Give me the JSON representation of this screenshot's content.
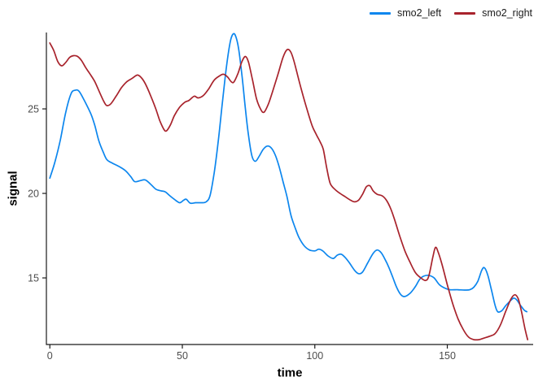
{
  "chart_data": {
    "type": "line",
    "title": "",
    "xlabel": "time",
    "ylabel": "signal",
    "x_ticks": [
      0,
      50,
      100,
      150
    ],
    "y_ticks": [
      15,
      20,
      25
    ],
    "xlim": [
      -1.3,
      182.4
    ],
    "ylim": [
      11.06,
      29.52
    ],
    "grid": false,
    "legend_position": "top-right",
    "axis_color": "#1a1a1a",
    "tick_label_color": "#4d4d4d",
    "series": [
      {
        "name": "smo2_left",
        "color": "#0c86ee",
        "points": [
          [
            0,
            20.9
          ],
          [
            2,
            21.9
          ],
          [
            4,
            23.2
          ],
          [
            6,
            24.8
          ],
          [
            8,
            25.9
          ],
          [
            9.5,
            26.1
          ],
          [
            11,
            26.05
          ],
          [
            13,
            25.5
          ],
          [
            15.5,
            24.7
          ],
          [
            17,
            24.0
          ],
          [
            18.5,
            23.1
          ],
          [
            20,
            22.5
          ],
          [
            21.5,
            22.0
          ],
          [
            23.5,
            21.8
          ],
          [
            26,
            21.6
          ],
          [
            28.5,
            21.35
          ],
          [
            30.5,
            21.0
          ],
          [
            32,
            20.7
          ],
          [
            34,
            20.75
          ],
          [
            36,
            20.8
          ],
          [
            38,
            20.55
          ],
          [
            40,
            20.25
          ],
          [
            42,
            20.15
          ],
          [
            43.5,
            20.1
          ],
          [
            45,
            19.9
          ],
          [
            47,
            19.65
          ],
          [
            49,
            19.45
          ],
          [
            50.5,
            19.6
          ],
          [
            51.5,
            19.65
          ],
          [
            53,
            19.42
          ],
          [
            55,
            19.45
          ],
          [
            57,
            19.45
          ],
          [
            59,
            19.5
          ],
          [
            60.5,
            19.9
          ],
          [
            62,
            21.2
          ],
          [
            63.5,
            23.0
          ],
          [
            65,
            25.2
          ],
          [
            66.5,
            27.3
          ],
          [
            68,
            28.9
          ],
          [
            69,
            29.4
          ],
          [
            70,
            29.35
          ],
          [
            71.2,
            28.6
          ],
          [
            72.5,
            27.0
          ],
          [
            73.8,
            25.0
          ],
          [
            75,
            23.4
          ],
          [
            76.3,
            22.2
          ],
          [
            77.6,
            21.9
          ],
          [
            79,
            22.2
          ],
          [
            80.5,
            22.6
          ],
          [
            82,
            22.8
          ],
          [
            83.5,
            22.7
          ],
          [
            85,
            22.3
          ],
          [
            86.5,
            21.6
          ],
          [
            88,
            20.7
          ],
          [
            89.5,
            19.8
          ],
          [
            91,
            18.7
          ],
          [
            92.5,
            18.0
          ],
          [
            94,
            17.4
          ],
          [
            96,
            16.9
          ],
          [
            98,
            16.65
          ],
          [
            100,
            16.6
          ],
          [
            101.5,
            16.7
          ],
          [
            103,
            16.6
          ],
          [
            105,
            16.3
          ],
          [
            107,
            16.15
          ],
          [
            108.5,
            16.35
          ],
          [
            110,
            16.4
          ],
          [
            111.5,
            16.2
          ],
          [
            113,
            15.9
          ],
          [
            115,
            15.45
          ],
          [
            116.5,
            15.25
          ],
          [
            118,
            15.35
          ],
          [
            120,
            15.9
          ],
          [
            122,
            16.45
          ],
          [
            123.5,
            16.65
          ],
          [
            125,
            16.5
          ],
          [
            126.5,
            16.1
          ],
          [
            128,
            15.6
          ],
          [
            129.5,
            15.0
          ],
          [
            131,
            14.4
          ],
          [
            132.5,
            14.0
          ],
          [
            134,
            13.9
          ],
          [
            136,
            14.1
          ],
          [
            138,
            14.5
          ],
          [
            139.5,
            14.9
          ],
          [
            141,
            15.1
          ],
          [
            143,
            15.15
          ],
          [
            145,
            15.0
          ],
          [
            147,
            14.6
          ],
          [
            149,
            14.4
          ],
          [
            151,
            14.3
          ],
          [
            154,
            14.3
          ],
          [
            156.5,
            14.28
          ],
          [
            158.5,
            14.3
          ],
          [
            160,
            14.45
          ],
          [
            161.5,
            14.8
          ],
          [
            163,
            15.45
          ],
          [
            164,
            15.6
          ],
          [
            165.2,
            15.2
          ],
          [
            166.5,
            14.4
          ],
          [
            168,
            13.4
          ],
          [
            169,
            13.0
          ],
          [
            170.5,
            13.05
          ],
          [
            172,
            13.35
          ],
          [
            173.5,
            13.6
          ],
          [
            175,
            13.8
          ],
          [
            176.2,
            13.7
          ],
          [
            177.5,
            13.4
          ],
          [
            179,
            13.1
          ],
          [
            180,
            13.0
          ]
        ]
      },
      {
        "name": "smo2_right",
        "color": "#a8232c",
        "points": [
          [
            0,
            28.9
          ],
          [
            1.5,
            28.45
          ],
          [
            3,
            27.8
          ],
          [
            4.5,
            27.55
          ],
          [
            6,
            27.75
          ],
          [
            7.5,
            28.05
          ],
          [
            9,
            28.15
          ],
          [
            10.5,
            28.1
          ],
          [
            12,
            27.85
          ],
          [
            13.5,
            27.45
          ],
          [
            15,
            27.1
          ],
          [
            17,
            26.6
          ],
          [
            19,
            25.9
          ],
          [
            20.5,
            25.4
          ],
          [
            21.5,
            25.2
          ],
          [
            23,
            25.3
          ],
          [
            25,
            25.75
          ],
          [
            27,
            26.25
          ],
          [
            29,
            26.6
          ],
          [
            31,
            26.8
          ],
          [
            33,
            27.0
          ],
          [
            34.5,
            26.85
          ],
          [
            36,
            26.5
          ],
          [
            38,
            25.8
          ],
          [
            40,
            25.0
          ],
          [
            41.5,
            24.3
          ],
          [
            43,
            23.8
          ],
          [
            44,
            23.7
          ],
          [
            45.5,
            24.05
          ],
          [
            47,
            24.6
          ],
          [
            49,
            25.1
          ],
          [
            51,
            25.4
          ],
          [
            52.5,
            25.5
          ],
          [
            54.5,
            25.75
          ],
          [
            56,
            25.65
          ],
          [
            58,
            25.8
          ],
          [
            60,
            26.2
          ],
          [
            62,
            26.7
          ],
          [
            64,
            26.95
          ],
          [
            65.5,
            27.05
          ],
          [
            67,
            26.9
          ],
          [
            68.5,
            26.6
          ],
          [
            69.5,
            26.6
          ],
          [
            71,
            27.1
          ],
          [
            72.5,
            27.8
          ],
          [
            73.8,
            28.1
          ],
          [
            75,
            27.75
          ],
          [
            76.5,
            26.7
          ],
          [
            78,
            25.6
          ],
          [
            79.5,
            25.0
          ],
          [
            80.8,
            24.8
          ],
          [
            82.5,
            25.3
          ],
          [
            84,
            26.0
          ],
          [
            86,
            27.0
          ],
          [
            88,
            28.05
          ],
          [
            89.5,
            28.5
          ],
          [
            90.8,
            28.4
          ],
          [
            92,
            27.9
          ],
          [
            93.5,
            27.0
          ],
          [
            95,
            26.1
          ],
          [
            97,
            25.0
          ],
          [
            99,
            24.0
          ],
          [
            100.5,
            23.5
          ],
          [
            102,
            23.05
          ],
          [
            103.2,
            22.6
          ],
          [
            104.5,
            21.5
          ],
          [
            105.8,
            20.6
          ],
          [
            107.5,
            20.25
          ],
          [
            109.5,
            20.0
          ],
          [
            111.5,
            19.8
          ],
          [
            113.5,
            19.6
          ],
          [
            115,
            19.5
          ],
          [
            116.5,
            19.6
          ],
          [
            118,
            19.95
          ],
          [
            119.5,
            20.4
          ],
          [
            120.8,
            20.45
          ],
          [
            122,
            20.15
          ],
          [
            123.5,
            19.95
          ],
          [
            125.5,
            19.85
          ],
          [
            127,
            19.6
          ],
          [
            128.5,
            19.15
          ],
          [
            130,
            18.5
          ],
          [
            132,
            17.5
          ],
          [
            134,
            16.6
          ],
          [
            136,
            15.9
          ],
          [
            138,
            15.3
          ],
          [
            140,
            15.0
          ],
          [
            141.8,
            14.85
          ],
          [
            143,
            15.1
          ],
          [
            144.5,
            16.2
          ],
          [
            145.5,
            16.8
          ],
          [
            146.5,
            16.55
          ],
          [
            148,
            15.8
          ],
          [
            150,
            14.6
          ],
          [
            152,
            13.5
          ],
          [
            154,
            12.6
          ],
          [
            156,
            11.95
          ],
          [
            158,
            11.5
          ],
          [
            160,
            11.35
          ],
          [
            162,
            11.35
          ],
          [
            164,
            11.45
          ],
          [
            166,
            11.55
          ],
          [
            168,
            11.7
          ],
          [
            170,
            12.2
          ],
          [
            172,
            13.0
          ],
          [
            174,
            13.75
          ],
          [
            175.5,
            14.0
          ],
          [
            176.8,
            13.75
          ],
          [
            178,
            13.0
          ],
          [
            179.3,
            12.0
          ],
          [
            180.3,
            11.35
          ]
        ]
      }
    ]
  }
}
